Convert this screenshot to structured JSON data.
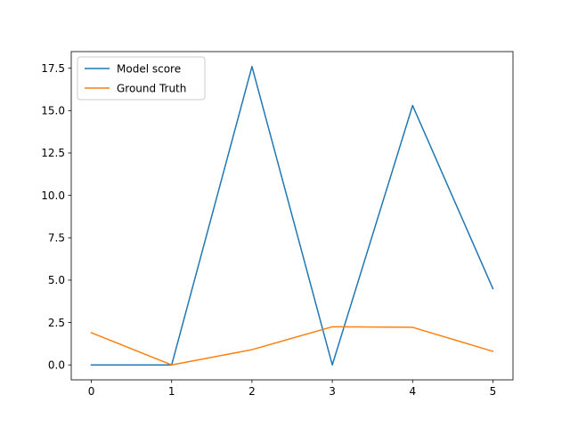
{
  "chart_data": {
    "type": "line",
    "title": "",
    "xlabel": "",
    "ylabel": "",
    "x": [
      0,
      1,
      2,
      3,
      4,
      5
    ],
    "xlim": [
      -0.25,
      5.25
    ],
    "ylim": [
      -0.88,
      18.48
    ],
    "xticks": [
      0,
      1,
      2,
      3,
      4,
      5
    ],
    "xtick_labels": [
      "0",
      "1",
      "2",
      "3",
      "4",
      "5"
    ],
    "yticks": [
      0,
      2.5,
      5,
      7.5,
      10,
      12.5,
      15,
      17.5
    ],
    "ytick_labels": [
      "0.0",
      "2.5",
      "5.0",
      "7.5",
      "10.0",
      "12.5",
      "15.0",
      "17.5"
    ],
    "grid": false,
    "legend_position": "top-left",
    "series": [
      {
        "name": "Model score",
        "color": "#1f77b4",
        "values": [
          0.0,
          0.0,
          17.6,
          0.0,
          15.3,
          4.5
        ]
      },
      {
        "name": "Ground Truth",
        "color": "#ff7f0e",
        "values": [
          1.9,
          0.0,
          0.9,
          2.25,
          2.22,
          0.8
        ]
      }
    ]
  }
}
